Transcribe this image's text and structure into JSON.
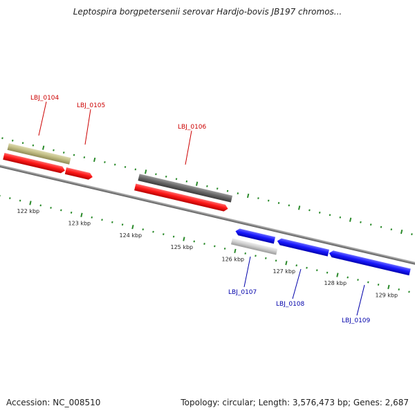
{
  "title": "Leptospira borgpetersenii serovar Hardjo-bovis JB197 chromos...",
  "accession": "Accession: NC_008510",
  "topology": "Topology: circular; Length: 3,576,473 bp; Genes: 2,687",
  "colors": {
    "forward": "#ff1a1a",
    "reverse": "#1a1aff",
    "label_forward": "#cc0000",
    "label_reverse": "#0000aa",
    "tick": "#2a8a2a",
    "pseudo": "#c2be85",
    "grey_dark": "#6a6a6a",
    "grey_light": "#c8c8c8",
    "backbone": "#888888"
  },
  "scale": {
    "tick_labels": [
      "122 kbp",
      "123 kbp",
      "124 kbp",
      "125 kbp",
      "126 kbp",
      "127 kbp",
      "128 kbp",
      "129 kbp"
    ]
  },
  "genes": {
    "forward": [
      {
        "name": "LBJ_0104"
      },
      {
        "name": "LBJ_0105"
      },
      {
        "name": "LBJ_0106"
      }
    ],
    "reverse": [
      {
        "name": "LBJ_0107"
      },
      {
        "name": "LBJ_0108"
      },
      {
        "name": "LBJ_0109"
      }
    ]
  }
}
